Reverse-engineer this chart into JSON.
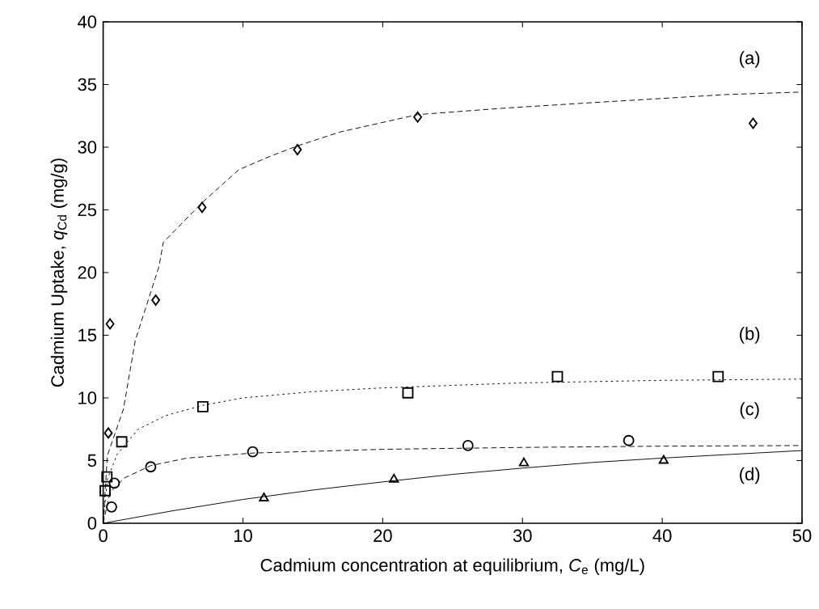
{
  "chart_data": {
    "type": "scatter",
    "xlabel": "Cadmium concentration at equilibrium, *C*$_{e}$ (mg/L)",
    "ylabel": "Cadmium Uptake, *q*$_{Cd}$ (mg/g)",
    "xlim": [
      0,
      50
    ],
    "ylim": [
      0,
      40
    ],
    "xticks": [
      0,
      10,
      20,
      30,
      40,
      50
    ],
    "yticks": [
      0,
      5,
      10,
      15,
      20,
      25,
      30,
      35,
      40
    ],
    "series": [
      {
        "type": "scatter",
        "marker": "diamond",
        "color": "#000000",
        "x": [
          0.37,
          0.49,
          3.76,
          7.08,
          13.9,
          22.5,
          46.5
        ],
        "values": [
          7.2,
          15.9,
          17.8,
          25.2,
          29.8,
          32.4,
          31.9
        ]
      },
      {
        "type": "scatter",
        "marker": "square",
        "color": "#000000",
        "x": [
          0.14,
          0.27,
          1.33,
          7.13,
          21.8,
          32.5,
          44.0
        ],
        "values": [
          2.6,
          3.7,
          6.5,
          9.3,
          10.4,
          11.7,
          11.7
        ]
      },
      {
        "type": "scatter",
        "marker": "circle",
        "color": "#000000",
        "x": [
          0.6,
          0.8,
          3.4,
          10.7,
          26.1,
          37.6
        ],
        "values": [
          1.3,
          3.2,
          4.5,
          5.7,
          6.2,
          6.6
        ]
      },
      {
        "type": "scatter",
        "marker": "triangle",
        "color": "#000000",
        "x": [
          11.5,
          20.8,
          30.1,
          40.1
        ],
        "values": [
          2.0,
          3.5,
          4.8,
          5.0
        ]
      },
      {
        "type": "line",
        "line_style": "dashed",
        "marker": "none",
        "color": "#000000",
        "x": [
          0,
          0.3,
          1.45,
          2.3,
          4.0,
          4.3,
          7.1,
          9.7,
          12.0,
          13.9,
          16.9,
          22.5,
          28.5,
          34.2,
          44.6,
          50
        ],
        "values": [
          0,
          5.4,
          9.1,
          14.6,
          20.5,
          22.4,
          25.6,
          28.2,
          29.3,
          30.1,
          31.2,
          32.6,
          33.1,
          33.5,
          34.2,
          34.4
        ]
      },
      {
        "type": "line",
        "line_style": "dotted",
        "marker": "none",
        "color": "#000000",
        "x": [
          0,
          0.3,
          1,
          2.5,
          4.5,
          7.1,
          10,
          15,
          20,
          30,
          40,
          50
        ],
        "values": [
          0,
          3.5,
          5.5,
          7.5,
          8.6,
          9.4,
          10.0,
          10.5,
          10.8,
          11.2,
          11.4,
          11.5
        ]
      },
      {
        "type": "line",
        "line_style": "dashed",
        "marker": "none",
        "color": "#000000",
        "x": [
          0,
          0.5,
          1.5,
          3.4,
          6,
          10.7,
          20,
          30,
          40,
          50
        ],
        "values": [
          0,
          2.5,
          3.6,
          4.6,
          5.2,
          5.6,
          5.9,
          6.05,
          6.15,
          6.2
        ]
      },
      {
        "type": "line",
        "line_style": "solid",
        "marker": "none",
        "color": "#000000",
        "x": [
          0,
          5,
          10,
          15,
          20,
          25,
          30,
          35,
          40,
          45,
          50
        ],
        "values": [
          0,
          1.0,
          1.9,
          2.65,
          3.3,
          3.9,
          4.4,
          4.85,
          5.2,
          5.5,
          5.8
        ]
      }
    ],
    "annotations": [
      "(a)",
      "(b)",
      "(c)",
      "(d)"
    ]
  }
}
